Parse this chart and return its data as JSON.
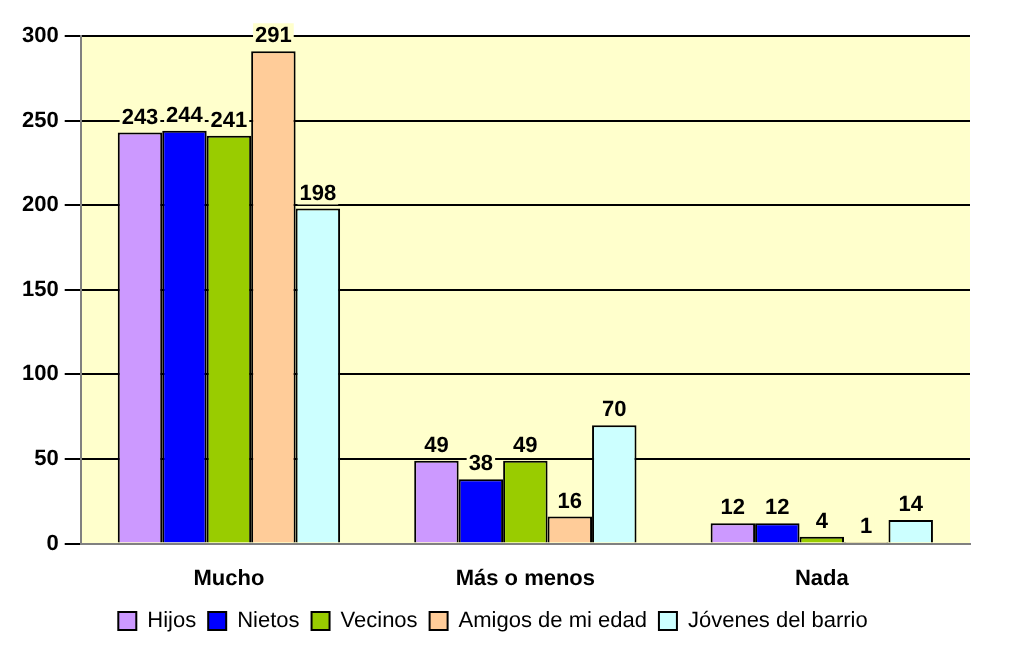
{
  "chart_data": {
    "type": "bar",
    "categories": [
      "Mucho",
      "Más o menos",
      "Nada"
    ],
    "series": [
      {
        "name": "Hijos",
        "color": "#cc99ff",
        "values": [
          243,
          49,
          12
        ]
      },
      {
        "name": "Nietos",
        "color": "#0000ff",
        "values": [
          244,
          38,
          12
        ]
      },
      {
        "name": "Vecinos",
        "color": "#99cc00",
        "values": [
          241,
          49,
          4
        ]
      },
      {
        "name": "Amigos de mi edad",
        "color": "#ffcc99",
        "values": [
          291,
          16,
          1
        ]
      },
      {
        "name": "Jóvenes del barrio",
        "color": "#ccffff",
        "values": [
          198,
          70,
          14
        ]
      }
    ],
    "ylim": [
      0,
      300
    ],
    "yticks": [
      0,
      50,
      100,
      150,
      200,
      250,
      300
    ],
    "grid": "y",
    "legend": "bottom",
    "data_labels": true
  }
}
